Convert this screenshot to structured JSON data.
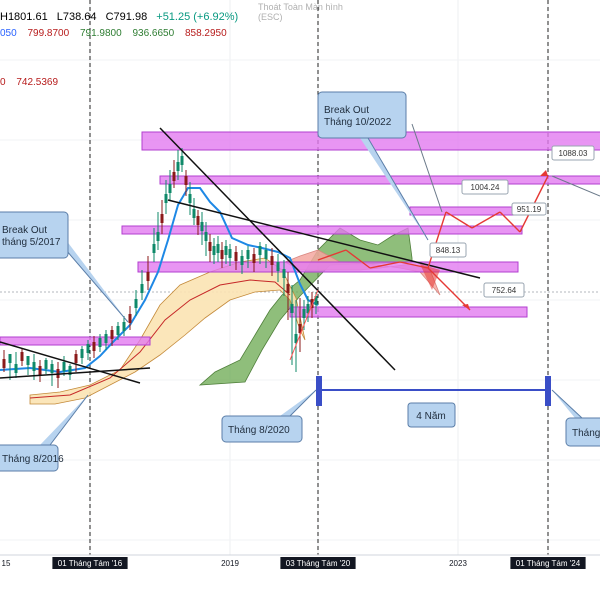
{
  "header": {
    "ohlc": [
      {
        "text": "H1801.61",
        "color": "#333333"
      },
      {
        "text": "L738.64",
        "color": "#333333"
      },
      {
        "text": "C791.98",
        "color": "#333333"
      },
      {
        "text": "+51.25 (+6.92%)",
        "color": "#089981"
      }
    ],
    "indicator_values": [
      {
        "text": "050",
        "color": "#2962ff"
      },
      {
        "text": "799.8700",
        "color": "#b71c1c"
      },
      {
        "text": "791.9800",
        "color": "#2e7d32"
      },
      {
        "text": "936.6650",
        "color": "#2e7d32"
      },
      {
        "text": "858.2950",
        "color": "#b71c1c"
      }
    ],
    "secondary_value": {
      "text": "742.5369",
      "color": "#b71c1c"
    },
    "secondary_prefix": {
      "text": "0",
      "color": "#b71c1c"
    },
    "fullscreen_hint_1": "Thoát Toàn Màn hình",
    "fullscreen_hint_2": "(ESC)"
  },
  "colors": {
    "zone": "#e27bf0",
    "zone_border": "#b23fcf",
    "cloud_green": "#6aa84f",
    "cloud_red": "#f4a7a0",
    "band_fill": "#fbe3b3",
    "price_line": "#1e88e5",
    "candle_up": "#0f8a6a",
    "candle_down": "#8b1a1a",
    "callout_fill": "#b7d3ef",
    "callout_border": "#5b7ea8",
    "arrow_red": "#e53935",
    "projection": "#3a4ec7",
    "axis_text": "#131722"
  },
  "chart_data": {
    "type": "candlestick",
    "title": "",
    "x_axis_labels": [
      "15",
      "01 Tháng Tám '16",
      "2019",
      "03 Tháng Tám '20",
      "2023",
      "01 Tháng Tám '24"
    ],
    "highlighted_x_labels": [
      "01 Tháng Tám '16",
      "03 Tháng Tám '20",
      "01 Tháng Tám '24"
    ],
    "projection_label": "4 Năm",
    "price_labels": [
      "1088.03",
      "1004.24",
      "951.19",
      "848.13",
      "752.64"
    ],
    "projected_path": [
      1004.24,
      951.19,
      1088.03
    ],
    "callouts": [
      {
        "lines": [
          "Break Out",
          "Tháng 10/2022"
        ]
      },
      {
        "lines": [
          "Break Out",
          "tháng 5/2017"
        ]
      },
      {
        "lines": [
          "Tháng 8/2016"
        ]
      },
      {
        "lines": [
          "Tháng 8/2020"
        ]
      },
      {
        "lines": [
          "Tháng"
        ]
      }
    ],
    "resistance_zones": [
      "top zone",
      "1088.03 zone",
      "1004.24 zone",
      "951.19 zone",
      "848.13 zone",
      "752.64 zone",
      "2016 zone"
    ],
    "grid": true
  }
}
